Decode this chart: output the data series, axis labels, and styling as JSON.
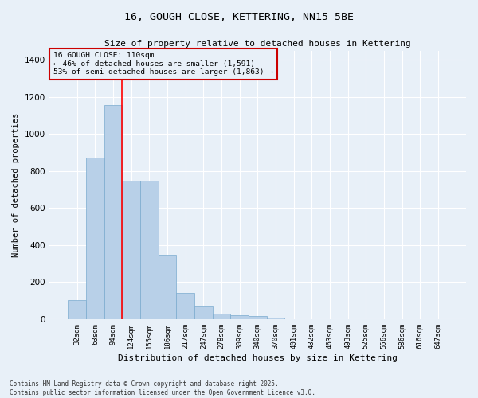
{
  "title1": "16, GOUGH CLOSE, KETTERING, NN15 5BE",
  "title2": "Size of property relative to detached houses in Kettering",
  "xlabel": "Distribution of detached houses by size in Kettering",
  "ylabel": "Number of detached properties",
  "categories": [
    "32sqm",
    "63sqm",
    "94sqm",
    "124sqm",
    "155sqm",
    "186sqm",
    "217sqm",
    "247sqm",
    "278sqm",
    "309sqm",
    "340sqm",
    "370sqm",
    "401sqm",
    "432sqm",
    "463sqm",
    "493sqm",
    "525sqm",
    "556sqm",
    "586sqm",
    "616sqm",
    "647sqm"
  ],
  "values": [
    105,
    873,
    1155,
    748,
    748,
    350,
    140,
    68,
    30,
    22,
    15,
    10,
    0,
    0,
    0,
    0,
    0,
    0,
    0,
    0,
    0
  ],
  "bar_color": "#b8d0e8",
  "bar_edge_color": "#7aaace",
  "bg_color": "#e8f0f8",
  "grid_color": "#ffffff",
  "redline_x": 2.5,
  "annotation_title": "16 GOUGH CLOSE: 110sqm",
  "annotation_line1": "← 46% of detached houses are smaller (1,591)",
  "annotation_line2": "53% of semi-detached houses are larger (1,863) →",
  "annotation_box_color": "#cc0000",
  "ylim": [
    0,
    1450
  ],
  "yticks": [
    0,
    200,
    400,
    600,
    800,
    1000,
    1200,
    1400
  ],
  "footer1": "Contains HM Land Registry data © Crown copyright and database right 2025.",
  "footer2": "Contains public sector information licensed under the Open Government Licence v3.0."
}
